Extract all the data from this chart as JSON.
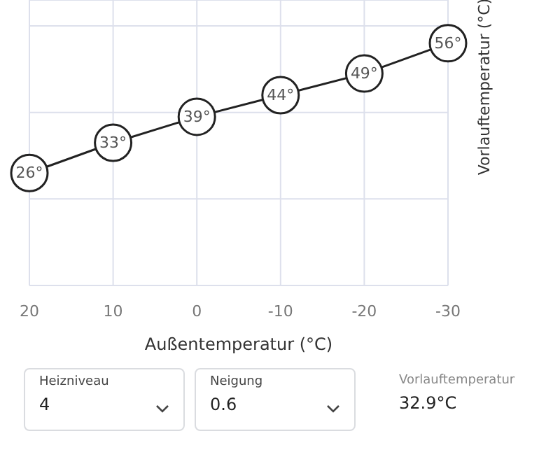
{
  "chart_data": {
    "type": "line",
    "xlabel": "Außentemperatur (°C)",
    "ylabel": "Vorlauftemperatur (°C)",
    "x": [
      20,
      10,
      0,
      -10,
      -20,
      -30
    ],
    "series": [
      {
        "color": "#222222",
        "values": [
          26,
          33,
          39,
          44,
          49,
          56
        ],
        "value_labels": [
          "26°",
          "33°",
          "39°",
          "44°",
          "49°",
          "56°"
        ]
      }
    ],
    "xlim": [
      20,
      -30
    ],
    "xticks": [
      20,
      10,
      0,
      -10,
      -20,
      -30
    ],
    "ylim": [
      0,
      66
    ],
    "tick_labels": "x",
    "grid": true,
    "marker": "circle",
    "line_style": "solid",
    "annotations": [
      "Heizniveau",
      "4",
      "Neigung",
      "0.6",
      "Vorlauftemperatur",
      "32.9°C"
    ]
  }
}
